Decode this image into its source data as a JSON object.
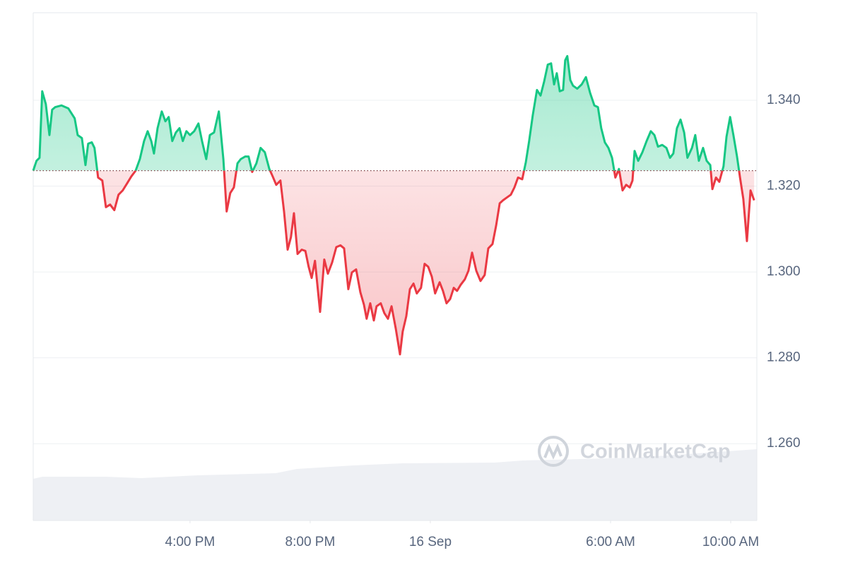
{
  "chart_data": {
    "type": "line",
    "watermark": "CoinMarketCap",
    "baseline": 1.3236,
    "colors": {
      "above": "#16c784",
      "below": "#ea3943"
    },
    "xlim": [
      10.78,
      34.87
    ],
    "ylim": [
      1.2421,
      1.3604
    ],
    "xticks": [
      {
        "value": 16,
        "label": "4:00 PM"
      },
      {
        "value": 20,
        "label": "8:00 PM"
      },
      {
        "value": 24,
        "label": "16 Sep"
      },
      {
        "value": 30,
        "label": "6:00 AM"
      },
      {
        "value": 34,
        "label": "10:00 AM"
      }
    ],
    "yticks": [
      {
        "value": 1.26,
        "label": "1.260"
      },
      {
        "value": 1.28,
        "label": "1.280"
      },
      {
        "value": 1.3,
        "label": "1.300"
      },
      {
        "value": 1.32,
        "label": "1.320"
      },
      {
        "value": 1.34,
        "label": "1.340"
      }
    ],
    "grid": true,
    "x": [
      10.78,
      10.89,
      10.99,
      11.08,
      11.2,
      11.32,
      11.41,
      11.51,
      11.72,
      11.95,
      12.16,
      12.26,
      12.4,
      12.52,
      12.61,
      12.73,
      12.82,
      12.94,
      13.08,
      13.2,
      13.34,
      13.48,
      13.62,
      13.76,
      13.91,
      14.05,
      14.19,
      14.33,
      14.47,
      14.59,
      14.71,
      14.8,
      14.92,
      15.06,
      15.18,
      15.29,
      15.41,
      15.53,
      15.65,
      15.76,
      15.88,
      16.0,
      16.14,
      16.28,
      16.4,
      16.54,
      16.66,
      16.8,
      16.96,
      17.11,
      17.22,
      17.34,
      17.46,
      17.58,
      17.69,
      17.84,
      17.95,
      18.07,
      18.21,
      18.35,
      18.49,
      18.64,
      18.75,
      18.87,
      19.01,
      19.13,
      19.25,
      19.36,
      19.46,
      19.58,
      19.72,
      19.84,
      19.95,
      20.05,
      20.16,
      20.33,
      20.47,
      20.59,
      20.73,
      20.87,
      21.01,
      21.13,
      21.27,
      21.39,
      21.53,
      21.67,
      21.79,
      21.88,
      22.0,
      22.12,
      22.21,
      22.35,
      22.47,
      22.59,
      22.71,
      22.85,
      22.99,
      23.08,
      23.2,
      23.32,
      23.44,
      23.55,
      23.69,
      23.81,
      23.93,
      24.05,
      24.16,
      24.31,
      24.42,
      24.54,
      24.66,
      24.78,
      24.89,
      25.01,
      25.15,
      25.27,
      25.39,
      25.53,
      25.67,
      25.81,
      25.93,
      26.07,
      26.19,
      26.31,
      26.42,
      26.56,
      26.68,
      26.8,
      26.92,
      27.06,
      27.18,
      27.29,
      27.41,
      27.55,
      27.67,
      27.79,
      27.91,
      28.02,
      28.12,
      28.21,
      28.31,
      28.42,
      28.49,
      28.56,
      28.66,
      28.75,
      28.89,
      29.04,
      29.18,
      29.32,
      29.46,
      29.58,
      29.69,
      29.81,
      29.93,
      30.05,
      30.16,
      30.28,
      30.4,
      30.52,
      30.64,
      30.73,
      30.8,
      30.92,
      31.06,
      31.2,
      31.34,
      31.46,
      31.58,
      31.72,
      31.86,
      31.98,
      32.09,
      32.21,
      32.33,
      32.45,
      32.56,
      32.71,
      32.82,
      32.94,
      33.08,
      33.2,
      33.32,
      33.39,
      33.51,
      33.62,
      33.76,
      33.86,
      33.98,
      34.09,
      34.21,
      34.31,
      34.42,
      34.54,
      34.66,
      34.78
    ],
    "values": [
      1.3236,
      1.3259,
      1.3266,
      1.3421,
      1.3391,
      1.3319,
      1.3378,
      1.3384,
      1.3388,
      1.3381,
      1.3358,
      1.3319,
      1.3312,
      1.3249,
      1.3299,
      1.3302,
      1.3289,
      1.322,
      1.3213,
      1.3151,
      1.3157,
      1.3144,
      1.318,
      1.319,
      1.3207,
      1.3223,
      1.3236,
      1.3263,
      1.3305,
      1.3328,
      1.3305,
      1.3276,
      1.3335,
      1.3374,
      1.3351,
      1.3361,
      1.3305,
      1.3325,
      1.3335,
      1.3305,
      1.3328,
      1.3319,
      1.3328,
      1.3346,
      1.3305,
      1.3263,
      1.3319,
      1.3325,
      1.3374,
      1.3263,
      1.3141,
      1.3184,
      1.3197,
      1.3253,
      1.3263,
      1.3269,
      1.3269,
      1.3233,
      1.3253,
      1.3289,
      1.3279,
      1.324,
      1.3223,
      1.3203,
      1.3213,
      1.3141,
      1.3052,
      1.3081,
      1.3137,
      1.3042,
      1.3052,
      1.3049,
      1.3012,
      1.2986,
      1.3026,
      1.2907,
      1.3029,
      1.2996,
      1.3022,
      1.3058,
      1.3062,
      1.3055,
      1.296,
      1.2999,
      1.3006,
      1.2953,
      1.2924,
      1.2891,
      1.2927,
      1.2887,
      1.292,
      1.2927,
      1.2904,
      1.2891,
      1.292,
      1.2868,
      1.2808,
      1.2861,
      1.2897,
      1.296,
      1.2973,
      1.295,
      1.2963,
      1.3019,
      1.3012,
      1.2989,
      1.295,
      1.2976,
      1.2956,
      1.2927,
      1.2937,
      1.2963,
      1.2956,
      1.297,
      1.2983,
      1.3003,
      1.3045,
      1.3003,
      1.2979,
      1.2993,
      1.3055,
      1.3065,
      1.3108,
      1.316,
      1.3167,
      1.3174,
      1.318,
      1.3197,
      1.322,
      1.3216,
      1.3256,
      1.3305,
      1.3365,
      1.3424,
      1.3411,
      1.3444,
      1.3483,
      1.3486,
      1.3437,
      1.3463,
      1.3421,
      1.3424,
      1.3493,
      1.3503,
      1.3447,
      1.3434,
      1.3427,
      1.3437,
      1.3454,
      1.3417,
      1.3388,
      1.3384,
      1.3335,
      1.3302,
      1.3289,
      1.3266,
      1.322,
      1.324,
      1.319,
      1.3203,
      1.3197,
      1.3213,
      1.3282,
      1.3259,
      1.3279,
      1.3305,
      1.3328,
      1.3319,
      1.3292,
      1.3296,
      1.3289,
      1.3266,
      1.3276,
      1.3335,
      1.3355,
      1.3325,
      1.3266,
      1.3289,
      1.3319,
      1.3259,
      1.3289,
      1.3259,
      1.3249,
      1.3193,
      1.322,
      1.321,
      1.3246,
      1.3315,
      1.3361,
      1.3319,
      1.3269,
      1.322,
      1.317,
      1.3072,
      1.319,
      1.3167
    ]
  }
}
